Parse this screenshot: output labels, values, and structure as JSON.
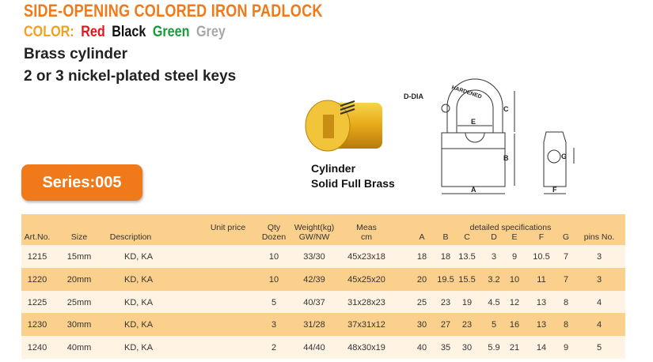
{
  "title": "SIDE-OPENING COLORED IRON PADLOCK",
  "color_label": "COLOR:",
  "colors": [
    {
      "name": "Red",
      "hex": "#e8141c"
    },
    {
      "name": "Black",
      "hex": "#111111"
    },
    {
      "name": "Green",
      "hex": "#1b9a3c"
    },
    {
      "name": "Grey",
      "hex": "#a8a8a8"
    }
  ],
  "features": [
    "Brass cylinder",
    "2 or 3 nickel-plated steel keys"
  ],
  "cylinder_caption": [
    "Cylinder",
    "Solid Full Brass"
  ],
  "series_label": "Series:005",
  "diagram_labels": {
    "hardened": "HARDENED",
    "d_dia": "D-DIA",
    "a": "A",
    "b": "B",
    "c": "C",
    "e": "E",
    "f": "F",
    "g": "G"
  },
  "accent": "#f07a1a",
  "table": {
    "group_header": "detailed specifications",
    "headers": {
      "art": "Art.No.",
      "size": "Size",
      "desc": "Description",
      "price": "Unit price",
      "qty1": "Qty",
      "qty2": "Dozen",
      "w1": "Weight(kg)",
      "w2": "GW/NW",
      "m1": "Meas",
      "m2": "cm",
      "A": "A",
      "B": "B",
      "C": "C",
      "D": "D",
      "E": "E",
      "F": "F",
      "G": "G",
      "pins": "pins No."
    },
    "rows": [
      [
        "1215",
        "15mm",
        "KD, KA",
        "",
        "10",
        "33/30",
        "45x23x18",
        "18",
        "18",
        "13.5",
        "3",
        "9",
        "10.5",
        "7",
        "3"
      ],
      [
        "1220",
        "20mm",
        "KD, KA",
        "",
        "10",
        "42/39",
        "45x25x20",
        "20",
        "19.5",
        "15.5",
        "3.2",
        "10",
        "11",
        "7",
        "3"
      ],
      [
        "1225",
        "25mm",
        "KD, KA",
        "",
        "5",
        "40/37",
        "31x28x23",
        "25",
        "23",
        "19",
        "4.5",
        "12",
        "13",
        "8",
        "4"
      ],
      [
        "1230",
        "30mm",
        "KD, KA",
        "",
        "3",
        "31/28",
        "37x31x12",
        "30",
        "27",
        "23",
        "5",
        "16",
        "13",
        "8",
        "4"
      ],
      [
        "1240",
        "40mm",
        "KD, KA",
        "",
        "2",
        "44/40",
        "48x30x19",
        "40",
        "35",
        "30",
        "5.9",
        "21",
        "14",
        "9",
        "5"
      ]
    ]
  }
}
